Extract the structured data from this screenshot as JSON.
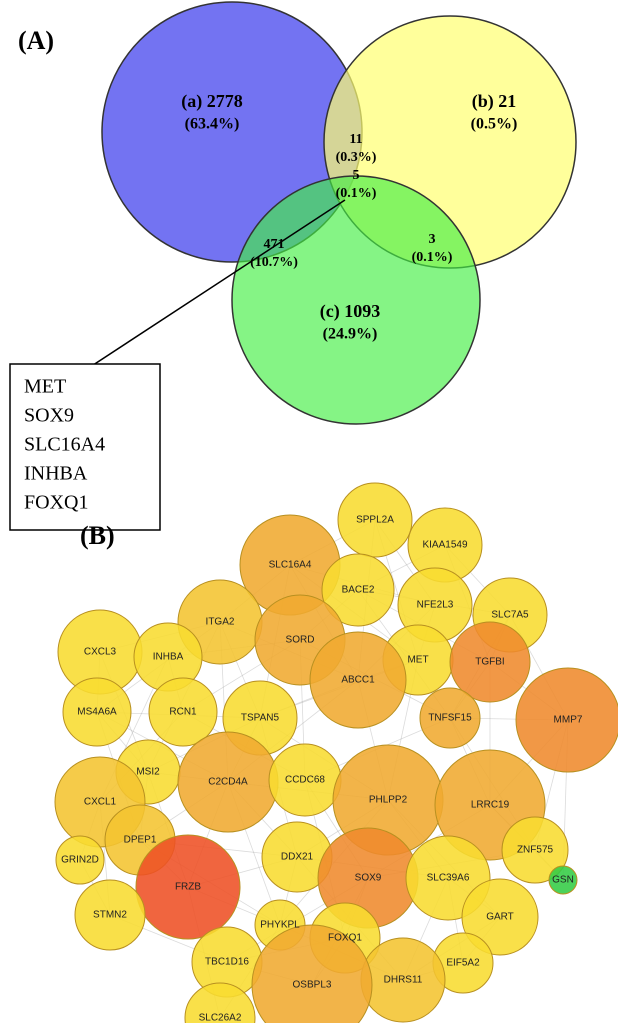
{
  "panel_a": {
    "label": "(A)",
    "regions": [
      {
        "count": "(a) 2778",
        "percent": "(63.4%)"
      },
      {
        "count": "11",
        "percent": "(0.3%)"
      },
      {
        "count": "(b) 21",
        "percent": "(0.5%)"
      },
      {
        "count": "5",
        "percent": "(0.1%)"
      },
      {
        "count": "471",
        "percent": "(10.7%)"
      },
      {
        "count": "3",
        "percent": "(0.1%)"
      },
      {
        "count": "(c) 1093",
        "percent": "(24.9%)"
      }
    ],
    "gene_box": [
      "MET",
      "SOX9",
      "SLC16A4",
      "INHBA",
      "FOXQ1"
    ]
  },
  "panel_b": {
    "label": "(B)",
    "nodes": [
      "SPPL2A",
      "KIAA1549",
      "SLC16A4",
      "BACE2",
      "NFE2L3",
      "SLC7A5",
      "ITGA2",
      "SORD",
      "CXCL3",
      "INHBA",
      "MET",
      "TGFBI",
      "ABCC1",
      "MMP7",
      "MS4A6A",
      "RCN1",
      "TSPAN5",
      "TNFSF15",
      "MSI2",
      "CXCL1",
      "C2CD4A",
      "CCDC68",
      "PHLPP2",
      "LRRC19",
      "DPEP1",
      "GRIN2D",
      "DDX21",
      "SOX9",
      "SLC39A6",
      "ZNF575",
      "FRZB",
      "STMN2",
      "GART",
      "GSN",
      "PHYKPL",
      "FOXQ1",
      "EIF5A2",
      "TBC1D16",
      "DHRS11",
      "OSBPL3",
      "SLC26A2"
    ]
  }
}
